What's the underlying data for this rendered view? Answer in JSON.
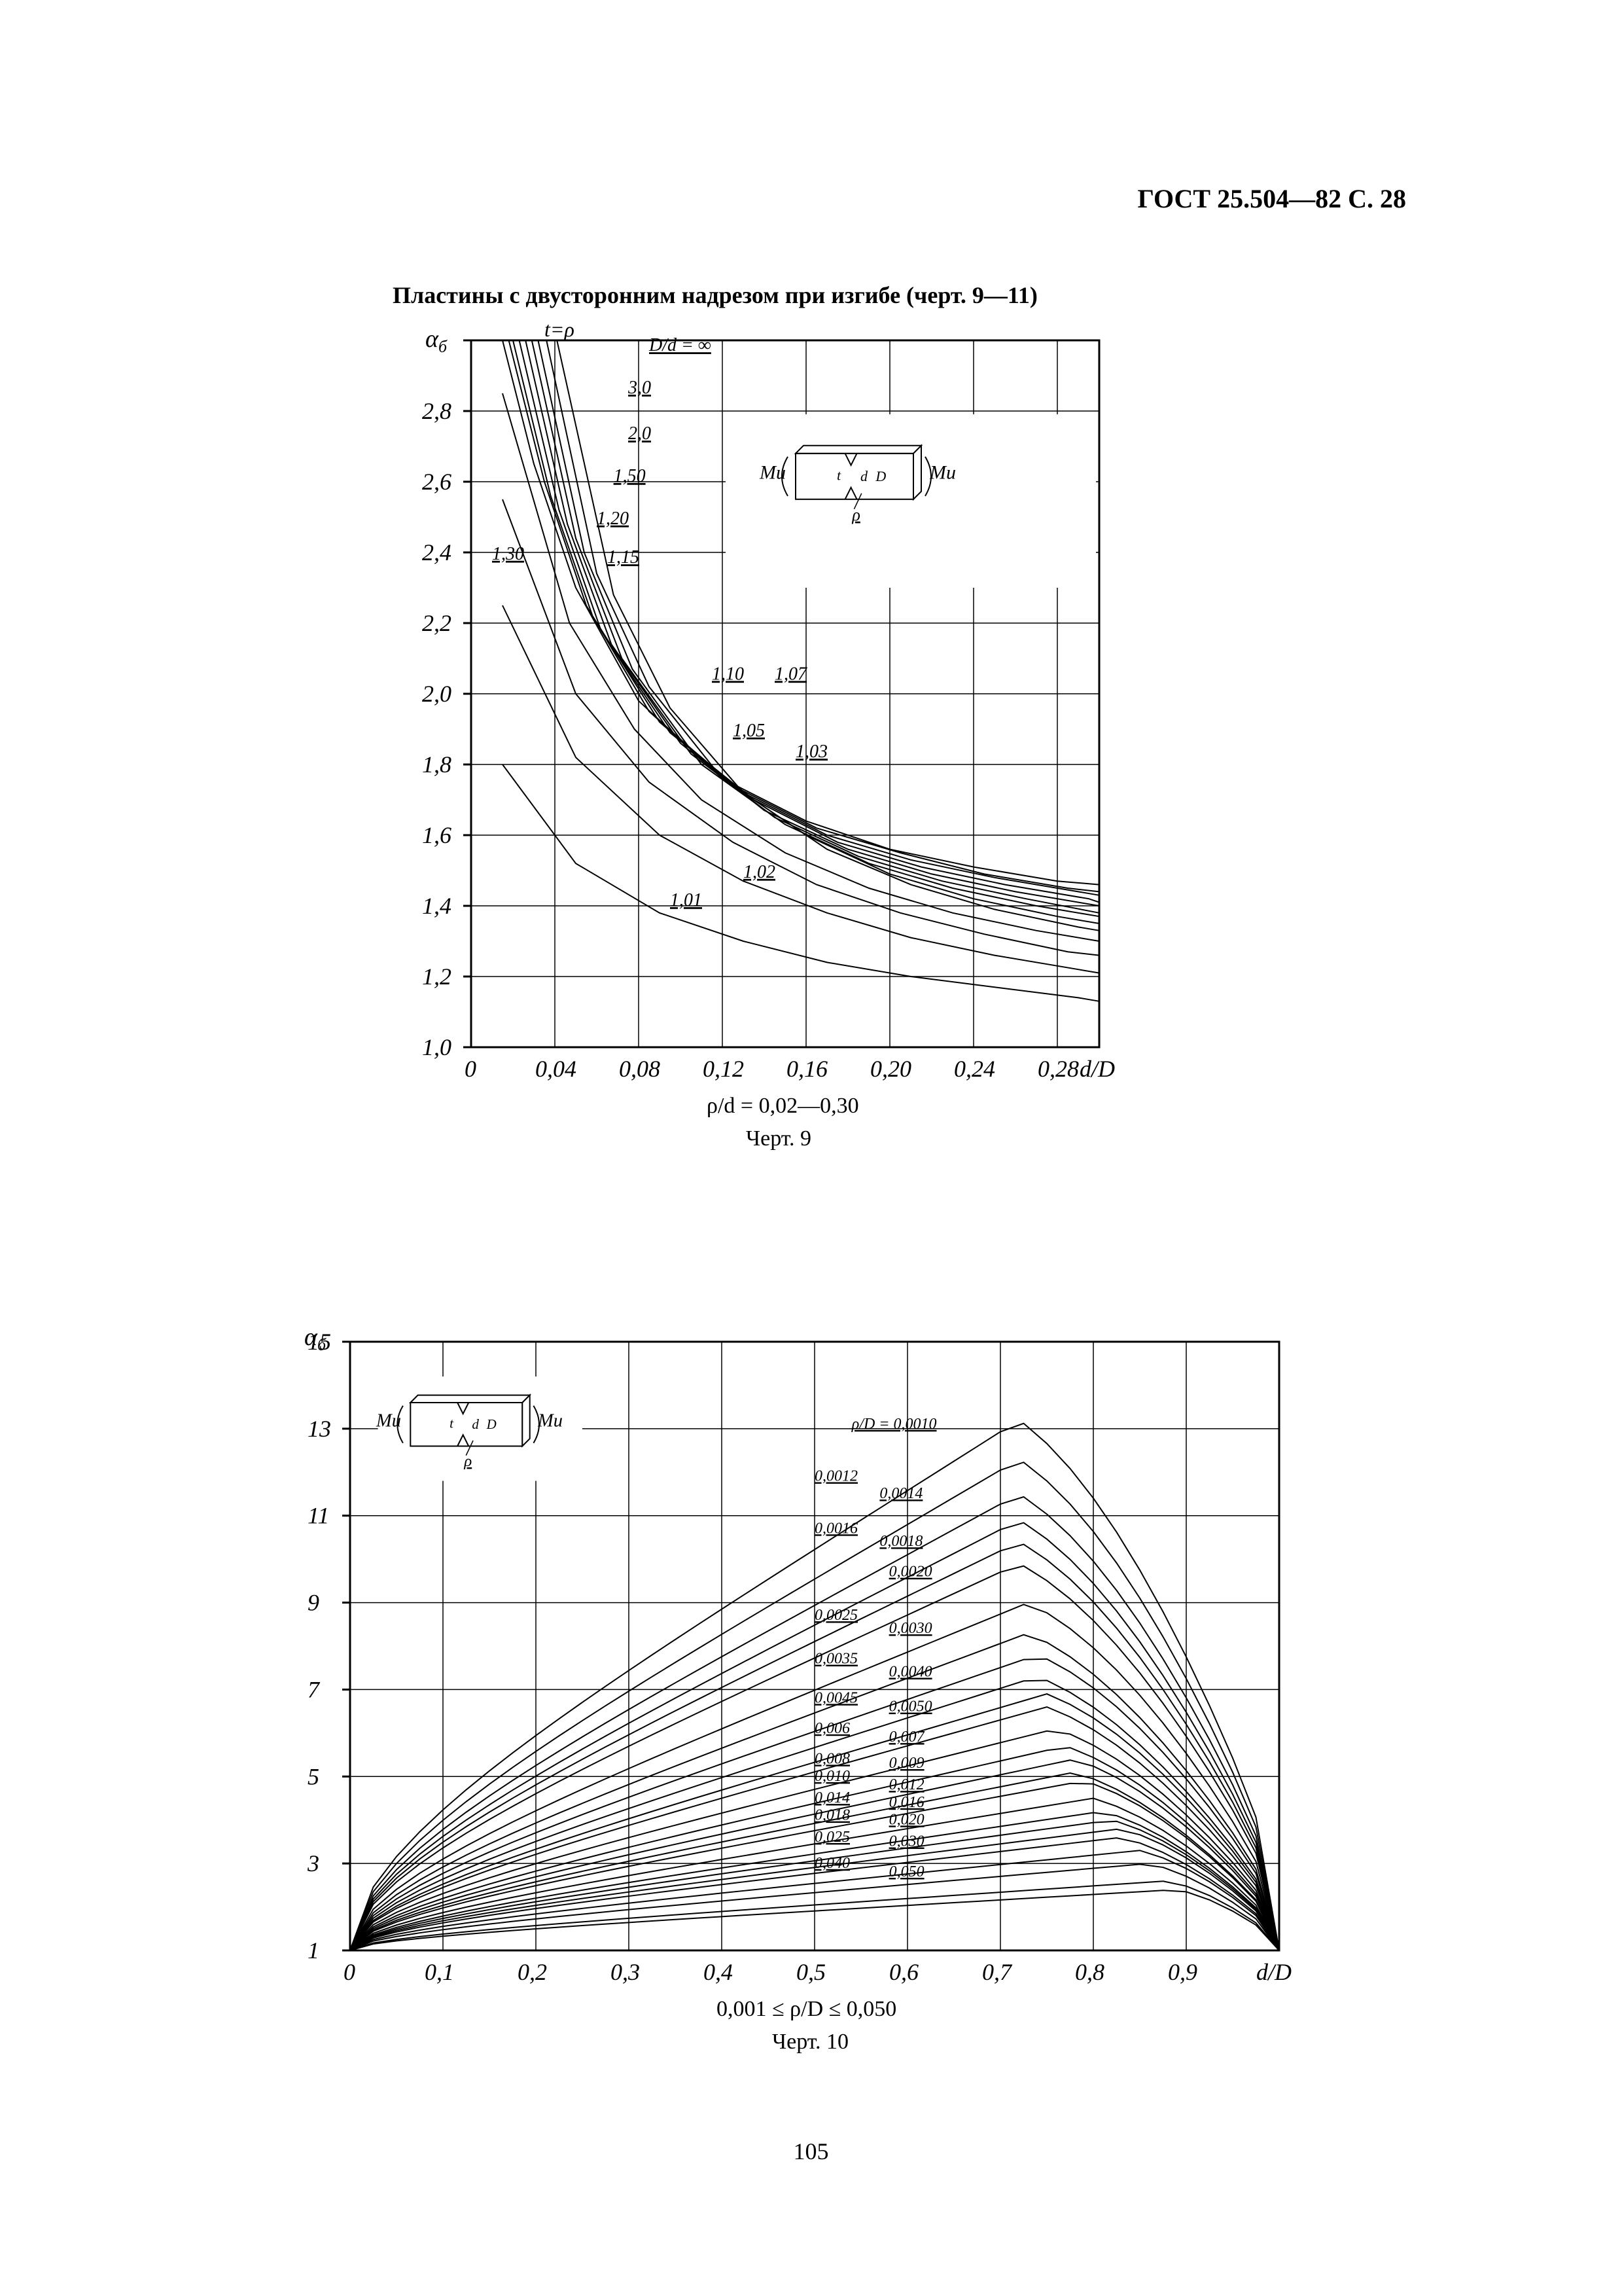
{
  "header": {
    "text": "ГОСТ 25.504—82 С. 28"
  },
  "section_title": "Пластины с двусторонним надрезом при изгибе (черт. 9—11)",
  "page_number": "105",
  "chart9": {
    "type": "line-family",
    "y_axis_label": "α_б",
    "x_axis_label": "d/D",
    "top_label": "t=ρ",
    "x_ticks": [
      "0",
      "0,04",
      "0,08",
      "0,12",
      "0,16",
      "0,20",
      "0,24",
      "0,28"
    ],
    "y_ticks": [
      "1,0",
      "1,2",
      "1,4",
      "1,6",
      "1,8",
      "2,0",
      "2,2",
      "2,4",
      "2,6",
      "2,8"
    ],
    "xlim": [
      0,
      0.3
    ],
    "ylim": [
      1.0,
      3.0
    ],
    "grid_color": "#000000",
    "background_color": "#ffffff",
    "line_color": "#000000",
    "line_width": 2,
    "inset": {
      "left_moment": "Mи",
      "right_moment": "Mи",
      "radius": "ρ",
      "d_label": "d",
      "D_label": "D",
      "t_label": "t"
    },
    "curve_labels": [
      {
        "text": "D/d = ∞",
        "x": 0.085,
        "y": 2.97
      },
      {
        "text": "3,0",
        "x": 0.075,
        "y": 2.85
      },
      {
        "text": "2,0",
        "x": 0.075,
        "y": 2.72
      },
      {
        "text": "1,50",
        "x": 0.068,
        "y": 2.6
      },
      {
        "text": "1,20",
        "x": 0.06,
        "y": 2.48
      },
      {
        "text": "1,15",
        "x": 0.065,
        "y": 2.37
      },
      {
        "text": "1,30",
        "x": 0.01,
        "y": 2.38
      },
      {
        "text": "1,10",
        "x": 0.115,
        "y": 2.04
      },
      {
        "text": "1,07",
        "x": 0.145,
        "y": 2.04
      },
      {
        "text": "1,05",
        "x": 0.125,
        "y": 1.88
      },
      {
        "text": "1,03",
        "x": 0.155,
        "y": 1.82
      },
      {
        "text": "1,02",
        "x": 0.13,
        "y": 1.48
      },
      {
        "text": "1,01",
        "x": 0.095,
        "y": 1.4
      }
    ],
    "curves": [
      {
        "id": "inf",
        "pts": [
          [
            0.015,
            3.0
          ],
          [
            0.03,
            2.65
          ],
          [
            0.05,
            2.3
          ],
          [
            0.08,
            1.98
          ],
          [
            0.12,
            1.76
          ],
          [
            0.16,
            1.64
          ],
          [
            0.2,
            1.56
          ],
          [
            0.24,
            1.51
          ],
          [
            0.28,
            1.47
          ],
          [
            0.3,
            1.46
          ]
        ]
      },
      {
        "id": "3.0",
        "pts": [
          [
            0.018,
            3.0
          ],
          [
            0.035,
            2.6
          ],
          [
            0.055,
            2.25
          ],
          [
            0.085,
            1.95
          ],
          [
            0.125,
            1.74
          ],
          [
            0.165,
            1.62
          ],
          [
            0.205,
            1.55
          ],
          [
            0.245,
            1.49
          ],
          [
            0.285,
            1.45
          ],
          [
            0.3,
            1.44
          ]
        ]
      },
      {
        "id": "2.0",
        "pts": [
          [
            0.02,
            3.0
          ],
          [
            0.038,
            2.56
          ],
          [
            0.058,
            2.22
          ],
          [
            0.09,
            1.92
          ],
          [
            0.13,
            1.72
          ],
          [
            0.17,
            1.6
          ],
          [
            0.21,
            1.53
          ],
          [
            0.25,
            1.48
          ],
          [
            0.29,
            1.44
          ],
          [
            0.3,
            1.43
          ]
        ]
      },
      {
        "id": "1.50",
        "pts": [
          [
            0.023,
            3.0
          ],
          [
            0.042,
            2.52
          ],
          [
            0.062,
            2.18
          ],
          [
            0.095,
            1.89
          ],
          [
            0.135,
            1.7
          ],
          [
            0.175,
            1.58
          ],
          [
            0.215,
            1.51
          ],
          [
            0.255,
            1.46
          ],
          [
            0.295,
            1.42
          ],
          [
            0.3,
            1.41
          ]
        ]
      },
      {
        "id": "1.30",
        "pts": [
          [
            0.026,
            3.0
          ],
          [
            0.046,
            2.48
          ],
          [
            0.067,
            2.14
          ],
          [
            0.1,
            1.86
          ],
          [
            0.14,
            1.67
          ],
          [
            0.18,
            1.56
          ],
          [
            0.22,
            1.49
          ],
          [
            0.26,
            1.44
          ],
          [
            0.3,
            1.4
          ]
        ]
      },
      {
        "id": "1.20",
        "pts": [
          [
            0.029,
            3.0
          ],
          [
            0.05,
            2.44
          ],
          [
            0.072,
            2.1
          ],
          [
            0.105,
            1.83
          ],
          [
            0.145,
            1.65
          ],
          [
            0.185,
            1.54
          ],
          [
            0.225,
            1.47
          ],
          [
            0.265,
            1.42
          ],
          [
            0.3,
            1.38
          ]
        ]
      },
      {
        "id": "1.15",
        "pts": [
          [
            0.032,
            3.0
          ],
          [
            0.054,
            2.4
          ],
          [
            0.077,
            2.07
          ],
          [
            0.11,
            1.8
          ],
          [
            0.15,
            1.63
          ],
          [
            0.19,
            1.52
          ],
          [
            0.23,
            1.45
          ],
          [
            0.27,
            1.4
          ],
          [
            0.3,
            1.37
          ]
        ]
      },
      {
        "id": "1.10",
        "pts": [
          [
            0.036,
            3.0
          ],
          [
            0.06,
            2.34
          ],
          [
            0.085,
            2.02
          ],
          [
            0.12,
            1.76
          ],
          [
            0.16,
            1.6
          ],
          [
            0.2,
            1.49
          ],
          [
            0.24,
            1.42
          ],
          [
            0.28,
            1.37
          ],
          [
            0.3,
            1.35
          ]
        ]
      },
      {
        "id": "1.07",
        "pts": [
          [
            0.041,
            3.0
          ],
          [
            0.068,
            2.28
          ],
          [
            0.095,
            1.96
          ],
          [
            0.13,
            1.72
          ],
          [
            0.17,
            1.56
          ],
          [
            0.21,
            1.46
          ],
          [
            0.25,
            1.39
          ],
          [
            0.29,
            1.34
          ],
          [
            0.3,
            1.33
          ]
        ]
      },
      {
        "id": "1.05",
        "pts": [
          [
            0.015,
            2.85
          ],
          [
            0.047,
            2.2
          ],
          [
            0.078,
            1.9
          ],
          [
            0.11,
            1.7
          ],
          [
            0.15,
            1.55
          ],
          [
            0.19,
            1.45
          ],
          [
            0.23,
            1.38
          ],
          [
            0.27,
            1.33
          ],
          [
            0.3,
            1.3
          ]
        ]
      },
      {
        "id": "1.03",
        "pts": [
          [
            0.015,
            2.55
          ],
          [
            0.05,
            2.0
          ],
          [
            0.085,
            1.75
          ],
          [
            0.125,
            1.58
          ],
          [
            0.165,
            1.46
          ],
          [
            0.205,
            1.38
          ],
          [
            0.245,
            1.32
          ],
          [
            0.285,
            1.27
          ],
          [
            0.3,
            1.26
          ]
        ]
      },
      {
        "id": "1.02",
        "pts": [
          [
            0.015,
            2.25
          ],
          [
            0.05,
            1.82
          ],
          [
            0.09,
            1.6
          ],
          [
            0.13,
            1.47
          ],
          [
            0.17,
            1.38
          ],
          [
            0.21,
            1.31
          ],
          [
            0.25,
            1.26
          ],
          [
            0.29,
            1.22
          ],
          [
            0.3,
            1.21
          ]
        ]
      },
      {
        "id": "1.01",
        "pts": [
          [
            0.015,
            1.8
          ],
          [
            0.05,
            1.52
          ],
          [
            0.09,
            1.38
          ],
          [
            0.13,
            1.3
          ],
          [
            0.17,
            1.24
          ],
          [
            0.21,
            1.2
          ],
          [
            0.25,
            1.17
          ],
          [
            0.29,
            1.14
          ],
          [
            0.3,
            1.13
          ]
        ]
      }
    ],
    "subcaption": "ρ/d = 0,02—0,30",
    "caption": "Черт. 9"
  },
  "chart10": {
    "type": "line-family",
    "y_axis_label": "α_б",
    "x_axis_label": "d/D",
    "x_ticks": [
      "0",
      "0,1",
      "0,2",
      "0,3",
      "0,4",
      "0,5",
      "0,6",
      "0,7",
      "0,8",
      "0,9"
    ],
    "y_ticks": [
      "1",
      "3",
      "5",
      "7",
      "9",
      "11",
      "13",
      "15"
    ],
    "xlim": [
      0,
      1.0
    ],
    "ylim": [
      1,
      15
    ],
    "grid_color": "#000000",
    "background_color": "#ffffff",
    "line_color": "#000000",
    "line_width": 2,
    "inset": {
      "left_moment": "Mи",
      "right_moment": "Mи",
      "radius": "ρ",
      "d_label": "d",
      "D_label": "D",
      "t_label": "t"
    },
    "curve_labels": [
      {
        "text": "ρ/D = 0,0010",
        "x": 0.54,
        "y": 13.0
      },
      {
        "text": "0,0012",
        "x": 0.5,
        "y": 11.8
      },
      {
        "text": "0,0014",
        "x": 0.57,
        "y": 11.4
      },
      {
        "text": "0,0016",
        "x": 0.5,
        "y": 10.6
      },
      {
        "text": "0,0018",
        "x": 0.57,
        "y": 10.3
      },
      {
        "text": "0,0020",
        "x": 0.58,
        "y": 9.6
      },
      {
        "text": "0,0025",
        "x": 0.5,
        "y": 8.6
      },
      {
        "text": "0,0030",
        "x": 0.58,
        "y": 8.3
      },
      {
        "text": "0,0035",
        "x": 0.5,
        "y": 7.6
      },
      {
        "text": "0,0040",
        "x": 0.58,
        "y": 7.3
      },
      {
        "text": "0,0045",
        "x": 0.5,
        "y": 6.7
      },
      {
        "text": "0,0050",
        "x": 0.58,
        "y": 6.5
      },
      {
        "text": "0,006",
        "x": 0.5,
        "y": 6.0
      },
      {
        "text": "0,007",
        "x": 0.58,
        "y": 5.8
      },
      {
        "text": "0,008",
        "x": 0.5,
        "y": 5.3
      },
      {
        "text": "0,009",
        "x": 0.58,
        "y": 5.2
      },
      {
        "text": "0,010",
        "x": 0.5,
        "y": 4.9
      },
      {
        "text": "0,012",
        "x": 0.58,
        "y": 4.7
      },
      {
        "text": "0,014",
        "x": 0.5,
        "y": 4.4
      },
      {
        "text": "0,016",
        "x": 0.58,
        "y": 4.3
      },
      {
        "text": "0,018",
        "x": 0.5,
        "y": 4.0
      },
      {
        "text": "0,020",
        "x": 0.58,
        "y": 3.9
      },
      {
        "text": "0,025",
        "x": 0.5,
        "y": 3.5
      },
      {
        "text": "0,030",
        "x": 0.58,
        "y": 3.4
      },
      {
        "text": "0,040",
        "x": 0.5,
        "y": 2.9
      },
      {
        "text": "0,050",
        "x": 0.58,
        "y": 2.7
      }
    ],
    "curves": [
      {
        "id": "0.0010",
        "peak": 13.2,
        "xpeak": 0.72
      },
      {
        "id": "0.0012",
        "peak": 12.3,
        "xpeak": 0.72
      },
      {
        "id": "0.0014",
        "peak": 11.5,
        "xpeak": 0.72
      },
      {
        "id": "0.0016",
        "peak": 10.9,
        "xpeak": 0.72
      },
      {
        "id": "0.0018",
        "peak": 10.4,
        "xpeak": 0.72
      },
      {
        "id": "0.0020",
        "peak": 9.9,
        "xpeak": 0.72
      },
      {
        "id": "0.0025",
        "peak": 9.0,
        "xpeak": 0.73
      },
      {
        "id": "0.0030",
        "peak": 8.3,
        "xpeak": 0.73
      },
      {
        "id": "0.0035",
        "peak": 7.8,
        "xpeak": 0.74
      },
      {
        "id": "0.0040",
        "peak": 7.3,
        "xpeak": 0.74
      },
      {
        "id": "0.0045",
        "peak": 6.9,
        "xpeak": 0.75
      },
      {
        "id": "0.0050",
        "peak": 6.6,
        "xpeak": 0.75
      },
      {
        "id": "0.006",
        "peak": 6.1,
        "xpeak": 0.76
      },
      {
        "id": "0.007",
        "peak": 5.7,
        "xpeak": 0.77
      },
      {
        "id": "0.008",
        "peak": 5.4,
        "xpeak": 0.78
      },
      {
        "id": "0.009",
        "peak": 5.1,
        "xpeak": 0.78
      },
      {
        "id": "0.010",
        "peak": 4.9,
        "xpeak": 0.79
      },
      {
        "id": "0.012",
        "peak": 4.5,
        "xpeak": 0.8
      },
      {
        "id": "0.014",
        "peak": 4.2,
        "xpeak": 0.81
      },
      {
        "id": "0.016",
        "peak": 4.0,
        "xpeak": 0.82
      },
      {
        "id": "0.018",
        "peak": 3.8,
        "xpeak": 0.83
      },
      {
        "id": "0.020",
        "peak": 3.6,
        "xpeak": 0.83
      },
      {
        "id": "0.025",
        "peak": 3.3,
        "xpeak": 0.85
      },
      {
        "id": "0.030",
        "peak": 3.0,
        "xpeak": 0.86
      },
      {
        "id": "0.040",
        "peak": 2.6,
        "xpeak": 0.88
      },
      {
        "id": "0.050",
        "peak": 2.4,
        "xpeak": 0.89
      }
    ],
    "subcaption": "0,001 ≤ ρ/D ≤ 0,050",
    "caption": "Черт. 10"
  }
}
